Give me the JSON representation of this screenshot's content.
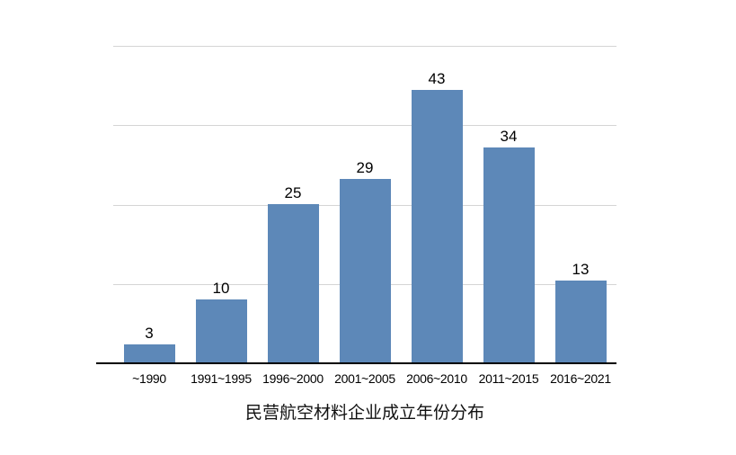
{
  "chart_data": {
    "type": "bar",
    "title": "民营航空材料企业成立年份分布",
    "categories": [
      "~1990",
      "1991~1995",
      "1996~2000",
      "2001~2005",
      "2006~2010",
      "2011~2015",
      "2016~2021"
    ],
    "values": [
      3,
      10,
      25,
      29,
      43,
      34,
      13
    ],
    "xlabel": "",
    "ylabel": "",
    "ylim": [
      0,
      50
    ],
    "ytick_step": 12.5,
    "ytick_labels_visible": false,
    "grid": true,
    "legend_position": "none",
    "data_labels_visible": true,
    "bar_color": "#5d88b8",
    "gridline_color": "#d5d5d5",
    "axis_color": "#000000",
    "text_color": "#000000",
    "background_color": "#ffffff"
  }
}
